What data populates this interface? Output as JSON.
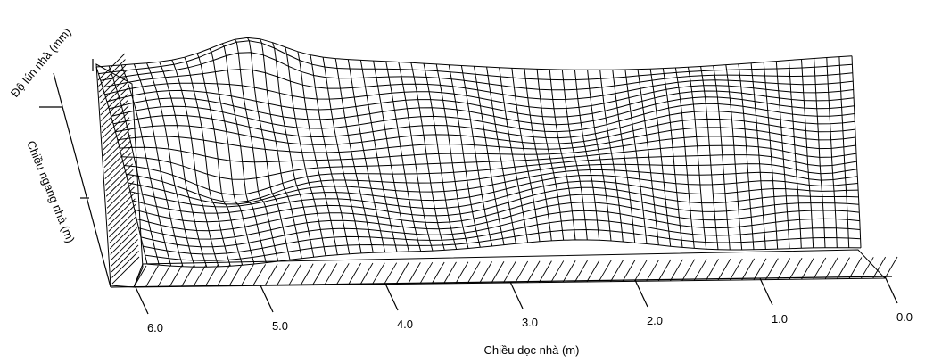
{
  "chart_data": {
    "type": "surface",
    "xlabel": "Chiều dọc nhà (m)",
    "ylabel": "Chiều ngang nhà (m)",
    "zlabel": "Độ lún nhà (mm)",
    "x_ticks": [
      "6.0",
      "5.0",
      "4.0",
      "3.0",
      "2.0",
      "1.0",
      "0.0"
    ],
    "x_tick_values": [
      6.0,
      5.0,
      4.0,
      3.0,
      2.0,
      1.0,
      0.0
    ],
    "xlim": [
      0.0,
      6.0
    ],
    "grid": true,
    "colors": {
      "line": "#000000",
      "background": "#ffffff"
    }
  }
}
